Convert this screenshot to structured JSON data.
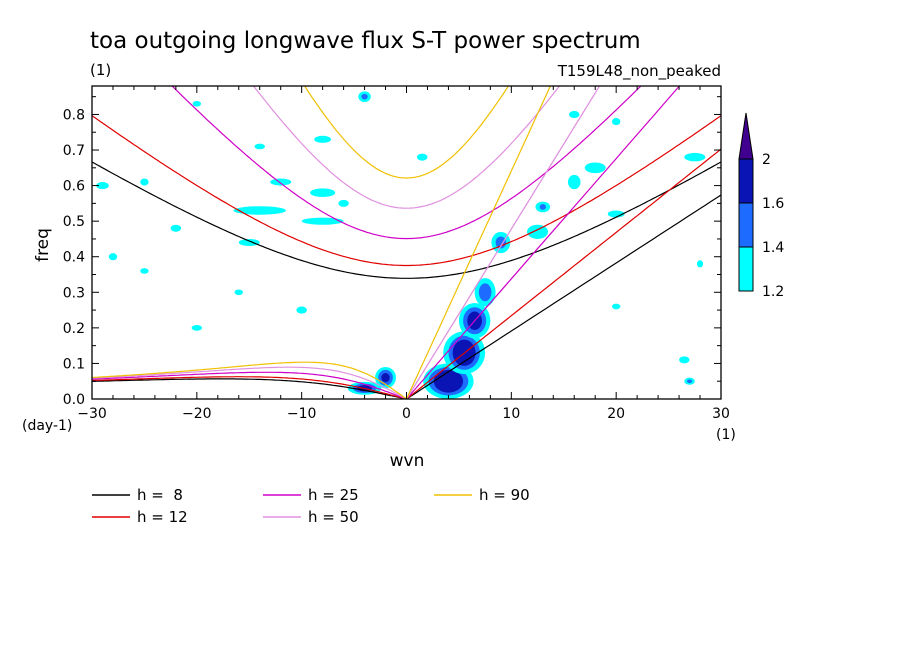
{
  "chart_data": {
    "type": "contour",
    "title": "toa outgoing longwave flux S-T power spectrum",
    "subtitle_left": "(1)",
    "subtitle_right": "T159L48_non_peaked",
    "xlabel": "wvn",
    "ylabel": "freq",
    "xunit": "(1)",
    "yunit": "(day-1)",
    "xlim": [
      -30,
      30
    ],
    "ylim": [
      0,
      0.88
    ],
    "xticks": [
      -30,
      -20,
      -10,
      0,
      10,
      20,
      30
    ],
    "yticks": [
      0.0,
      0.1,
      0.2,
      0.3,
      0.4,
      0.5,
      0.6,
      0.7,
      0.8
    ],
    "colorbar": {
      "levels": [
        "1.2",
        "1.4",
        "1.6",
        "2"
      ],
      "colors": [
        "#00ffff",
        "#1e6cff",
        "#0a14b4",
        "#400090"
      ]
    },
    "dispersion_curves": [
      {
        "label": "h =  8",
        "h": 8,
        "color": "#000000"
      },
      {
        "label": "h = 12",
        "h": 12,
        "color": "#e00000"
      },
      {
        "label": "h = 25",
        "h": 25,
        "color": "#d000c8"
      },
      {
        "label": "h = 50",
        "h": 50,
        "color": "#e090e0"
      },
      {
        "label": "h = 90",
        "h": 90,
        "color": "#f0c000"
      }
    ],
    "contour_regions": [
      {
        "level": "1.2-1.4",
        "x": -4,
        "y": 0.03,
        "rx": 1.6,
        "ry": 0.018
      },
      {
        "level": "1.4-1.6",
        "x": -4,
        "y": 0.03,
        "rx": 1.1,
        "ry": 0.013
      },
      {
        "level": "1.6-2",
        "x": -4,
        "y": 0.03,
        "rx": 0.7,
        "ry": 0.009
      },
      {
        "level": "1.2-1.4",
        "x": -2,
        "y": 0.06,
        "rx": 1.0,
        "ry": 0.03
      },
      {
        "level": "1.4-1.6",
        "x": -2,
        "y": 0.06,
        "rx": 0.7,
        "ry": 0.022
      },
      {
        "level": "1.6-2",
        "x": -2,
        "y": 0.06,
        "rx": 0.4,
        "ry": 0.013
      },
      {
        "level": "1.2-1.4",
        "x": 4,
        "y": 0.05,
        "rx": 2.4,
        "ry": 0.05
      },
      {
        "level": "1.4-1.6",
        "x": 4,
        "y": 0.05,
        "rx": 1.9,
        "ry": 0.04
      },
      {
        "level": "1.6-2",
        "x": 4,
        "y": 0.05,
        "rx": 1.4,
        "ry": 0.032
      },
      {
        "level": "1.2-1.4",
        "x": 5.5,
        "y": 0.13,
        "rx": 2.0,
        "ry": 0.06
      },
      {
        "level": "1.4-1.6",
        "x": 5.5,
        "y": 0.13,
        "rx": 1.5,
        "ry": 0.048
      },
      {
        "level": "1.6-2",
        "x": 5.5,
        "y": 0.13,
        "rx": 1.1,
        "ry": 0.037
      },
      {
        "level": "1.2-1.4",
        "x": 6.5,
        "y": 0.22,
        "rx": 1.5,
        "ry": 0.05
      },
      {
        "level": "1.4-1.6",
        "x": 6.5,
        "y": 0.22,
        "rx": 1.1,
        "ry": 0.038
      },
      {
        "level": "1.6-2",
        "x": 6.5,
        "y": 0.22,
        "rx": 0.7,
        "ry": 0.026
      },
      {
        "level": "1.2-1.4",
        "x": 7.5,
        "y": 0.3,
        "rx": 1.0,
        "ry": 0.04
      },
      {
        "level": "1.4-1.6",
        "x": 7.5,
        "y": 0.3,
        "rx": 0.6,
        "ry": 0.025
      },
      {
        "level": "1.2-1.4",
        "x": 9,
        "y": 0.44,
        "rx": 0.9,
        "ry": 0.03
      },
      {
        "level": "1.4-1.6",
        "x": 9,
        "y": 0.44,
        "rx": 0.5,
        "ry": 0.017
      },
      {
        "level": "1.2-1.4",
        "x": 12.5,
        "y": 0.47,
        "rx": 1.0,
        "ry": 0.02
      },
      {
        "level": "1.2-1.4",
        "x": 13,
        "y": 0.54,
        "rx": 0.7,
        "ry": 0.015
      },
      {
        "level": "1.4-1.6",
        "x": 13,
        "y": 0.54,
        "rx": 0.3,
        "ry": 0.008
      },
      {
        "level": "1.2-1.4",
        "x": -4,
        "y": 0.85,
        "rx": 0.6,
        "ry": 0.015
      },
      {
        "level": "1.4-1.6",
        "x": -4,
        "y": 0.85,
        "rx": 0.3,
        "ry": 0.008
      },
      {
        "level": "1.2-1.4",
        "x": 27,
        "y": 0.05,
        "rx": 0.5,
        "ry": 0.01
      },
      {
        "level": "1.4-1.6",
        "x": 27,
        "y": 0.05,
        "rx": 0.25,
        "ry": 0.005
      },
      {
        "level": "1.2-1.4",
        "x": -14,
        "y": 0.71,
        "rx": 0.5,
        "ry": 0.008
      },
      {
        "level": "1.2-1.4",
        "x": -22,
        "y": 0.48,
        "rx": 0.5,
        "ry": 0.01
      },
      {
        "level": "1.2-1.4",
        "x": -15,
        "y": 0.44,
        "rx": 1.0,
        "ry": 0.01
      },
      {
        "level": "1.2-1.4",
        "x": -14,
        "y": 0.53,
        "rx": 2.5,
        "ry": 0.012
      },
      {
        "level": "1.2-1.4",
        "x": -8,
        "y": 0.5,
        "rx": 2.0,
        "ry": 0.01
      },
      {
        "level": "1.2-1.4",
        "x": -8,
        "y": 0.58,
        "rx": 1.2,
        "ry": 0.012
      },
      {
        "level": "1.2-1.4",
        "x": -12,
        "y": 0.61,
        "rx": 1.0,
        "ry": 0.01
      },
      {
        "level": "1.2-1.4",
        "x": -8,
        "y": 0.73,
        "rx": 0.8,
        "ry": 0.01
      },
      {
        "level": "1.2-1.4",
        "x": 18,
        "y": 0.65,
        "rx": 1.0,
        "ry": 0.015
      },
      {
        "level": "1.2-1.4",
        "x": 16,
        "y": 0.61,
        "rx": 0.6,
        "ry": 0.02
      },
      {
        "level": "1.2-1.4",
        "x": 20,
        "y": 0.52,
        "rx": 0.8,
        "ry": 0.01
      },
      {
        "level": "1.2-1.4",
        "x": 27.5,
        "y": 0.68,
        "rx": 1.0,
        "ry": 0.012
      },
      {
        "level": "1.2-1.4",
        "x": 28,
        "y": 0.38,
        "rx": 0.3,
        "ry": 0.01
      },
      {
        "level": "1.2-1.4",
        "x": -29,
        "y": 0.6,
        "rx": 0.6,
        "ry": 0.01
      },
      {
        "level": "1.2-1.4",
        "x": -28,
        "y": 0.4,
        "rx": 0.4,
        "ry": 0.01
      },
      {
        "level": "1.2-1.4",
        "x": -25,
        "y": 0.61,
        "rx": 0.4,
        "ry": 0.01
      },
      {
        "level": "1.2-1.4",
        "x": -20,
        "y": 0.2,
        "rx": 0.5,
        "ry": 0.008
      },
      {
        "level": "1.2-1.4",
        "x": -10,
        "y": 0.25,
        "rx": 0.5,
        "ry": 0.01
      },
      {
        "level": "1.2-1.4",
        "x": -16,
        "y": 0.3,
        "rx": 0.4,
        "ry": 0.008
      },
      {
        "level": "1.2-1.4",
        "x": -25,
        "y": 0.36,
        "rx": 0.4,
        "ry": 0.008
      },
      {
        "level": "1.2-1.4",
        "x": 20,
        "y": 0.26,
        "rx": 0.4,
        "ry": 0.008
      },
      {
        "level": "1.2-1.4",
        "x": 26.5,
        "y": 0.11,
        "rx": 0.5,
        "ry": 0.01
      },
      {
        "level": "1.2-1.4",
        "x": -20,
        "y": 0.83,
        "rx": 0.4,
        "ry": 0.008
      },
      {
        "level": "1.2-1.4",
        "x": 16,
        "y": 0.8,
        "rx": 0.5,
        "ry": 0.01
      },
      {
        "level": "1.2-1.4",
        "x": 20,
        "y": 0.78,
        "rx": 0.4,
        "ry": 0.01
      },
      {
        "level": "1.2-1.4",
        "x": 1.5,
        "y": 0.68,
        "rx": 0.5,
        "ry": 0.01
      },
      {
        "level": "1.2-1.4",
        "x": -6,
        "y": 0.55,
        "rx": 0.5,
        "ry": 0.01
      }
    ]
  }
}
